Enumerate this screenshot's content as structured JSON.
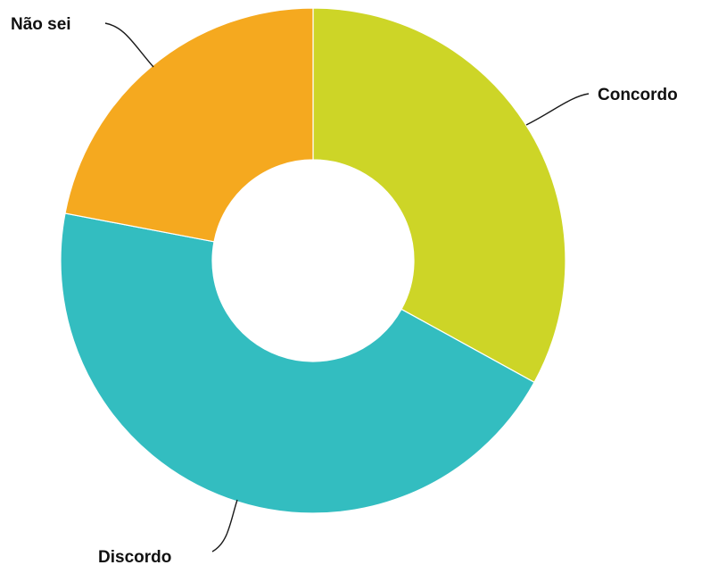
{
  "chart_data": {
    "type": "pie",
    "variant": "donut",
    "title": "",
    "slices": [
      {
        "label": "Concordo",
        "value": 33,
        "color": "#cdd527"
      },
      {
        "label": "Discordo",
        "value": 45,
        "color": "#33bdc0"
      },
      {
        "label": "Não sei",
        "value": 22,
        "color": "#f5a91f"
      }
    ],
    "start_angle_deg": 0,
    "direction": "clockwise",
    "legend": "none",
    "labels": "outside-with-leader-lines"
  }
}
